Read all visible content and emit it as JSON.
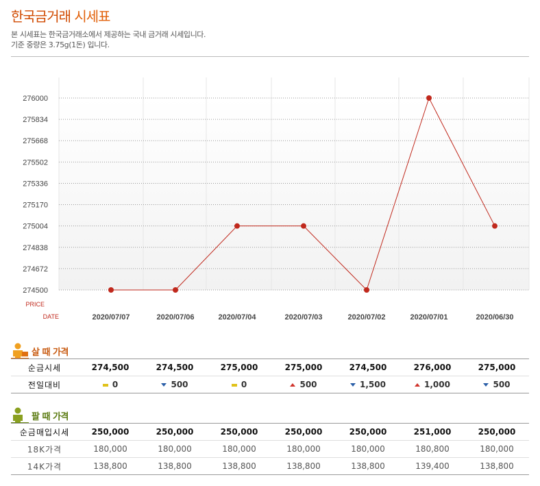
{
  "header": {
    "title_main": "한국금거래",
    "title_rest": " 시세표",
    "desc_line1": "본 시세표는 한국금거래소에서 제공하는 국내 금거래 시세입니다.",
    "desc_line2": "기준 중량은 3.75g(1돈) 입니다."
  },
  "chart_data": {
    "type": "line",
    "ylabel": "PRICE",
    "xlabel": "DATE",
    "x": [
      "2020/07/07",
      "2020/07/06",
      "2020/07/04",
      "2020/07/03",
      "2020/07/02",
      "2020/07/01",
      "2020/06/30"
    ],
    "y_ticks": [
      "276000",
      "275834",
      "275668",
      "275502",
      "275336",
      "275170",
      "275004",
      "274838",
      "274672",
      "274500"
    ],
    "ylim": [
      274500,
      276000
    ],
    "series": [
      {
        "values": [
          274500,
          274500,
          275000,
          275000,
          274500,
          276000,
          275000
        ],
        "color": "#c0281c"
      }
    ],
    "grid": true
  },
  "buy": {
    "heading": "살 때 가격",
    "rows": [
      {
        "label": "순금시세",
        "values": [
          "274,500",
          "274,500",
          "275,000",
          "275,000",
          "274,500",
          "276,000",
          "275,000"
        ]
      },
      {
        "label": "전일대비",
        "changes": [
          {
            "dir": "flat",
            "text": "0"
          },
          {
            "dir": "down",
            "text": "500"
          },
          {
            "dir": "flat",
            "text": "0"
          },
          {
            "dir": "up",
            "text": "500"
          },
          {
            "dir": "down",
            "text": "1,500"
          },
          {
            "dir": "up",
            "text": "1,000"
          },
          {
            "dir": "down",
            "text": "500"
          }
        ]
      }
    ]
  },
  "sell": {
    "heading": "팔 때 가격",
    "rows": [
      {
        "label": "순금매입시세",
        "values": [
          "250,000",
          "250,000",
          "250,000",
          "250,000",
          "250,000",
          "251,000",
          "250,000"
        ]
      },
      {
        "label": "18K가격",
        "values": [
          "180,000",
          "180,000",
          "180,000",
          "180,000",
          "180,000",
          "180,800",
          "180,000"
        ]
      },
      {
        "label": "14K가격",
        "values": [
          "138,800",
          "138,800",
          "138,800",
          "138,800",
          "138,800",
          "139,400",
          "138,800"
        ]
      }
    ]
  }
}
